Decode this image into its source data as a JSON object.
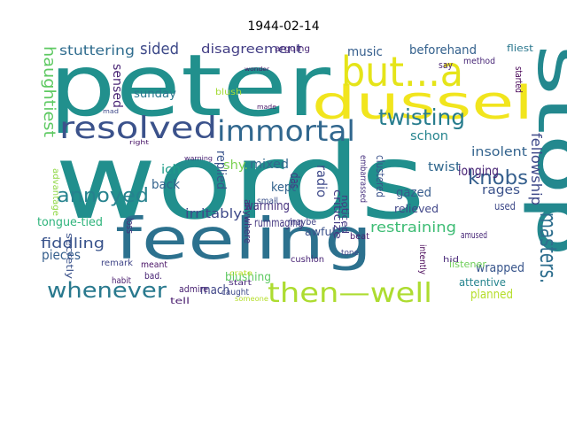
{
  "title": "1944-02-14",
  "words": [
    {
      "text": "peter",
      "color": "#21908d"
    },
    {
      "text": "words",
      "color": "#218f8d"
    },
    {
      "text": "feeling",
      "color": "#2c718e"
    },
    {
      "text": "stop",
      "color": "#23888e"
    },
    {
      "text": "dussel",
      "color": "#f1e51d"
    },
    {
      "text": "but...a",
      "color": "#e5e419"
    },
    {
      "text": "resolved",
      "color": "#3b528b"
    },
    {
      "text": "immortal",
      "color": "#31678e"
    },
    {
      "text": "twisting",
      "color": "#287d8e"
    },
    {
      "text": "annoyed",
      "color": "#26828e"
    },
    {
      "text": "whenever",
      "color": "#29798e"
    },
    {
      "text": "then—well",
      "color": "#addc30"
    },
    {
      "text": "masters.",
      "color": "#2e6e8e"
    },
    {
      "text": "knobs",
      "color": "#355f8d"
    },
    {
      "text": "fellowship",
      "color": "#3e4989"
    },
    {
      "text": "haughtiest",
      "color": "#5ec962"
    },
    {
      "text": "stuttering",
      "color": "#2f6c8e"
    },
    {
      "text": "sided",
      "color": "#3e4a89"
    },
    {
      "text": "disagreement",
      "color": "#433e85"
    },
    {
      "text": "music",
      "color": "#355e8d"
    },
    {
      "text": "beforehand",
      "color": "#34618d"
    },
    {
      "text": "sensed",
      "color": "#482374"
    },
    {
      "text": "sunday",
      "color": "#2a778e"
    },
    {
      "text": "shy.",
      "color": "#7ad151"
    },
    {
      "text": "mixed",
      "color": "#31688e"
    },
    {
      "text": "schon",
      "color": "#25848e"
    },
    {
      "text": "insolent",
      "color": "#33638d"
    },
    {
      "text": "ich",
      "color": "#1f9e89"
    },
    {
      "text": "back",
      "color": "#33638d"
    },
    {
      "text": "replied",
      "color": "#3a548c"
    },
    {
      "text": "das",
      "color": "#443983"
    },
    {
      "text": "radio",
      "color": "#3e4989"
    },
    {
      "text": "twist",
      "color": "#31688e"
    },
    {
      "text": "longing",
      "color": "#482475"
    },
    {
      "text": "rages",
      "color": "#3b528b"
    },
    {
      "text": "gazed",
      "color": "#365c8d"
    },
    {
      "text": "kept",
      "color": "#33638d"
    },
    {
      "text": "warming",
      "color": "#46327e"
    },
    {
      "text": "irritably",
      "color": "#3e4989"
    },
    {
      "text": "restraining",
      "color": "#3dbc74"
    },
    {
      "text": "tongue-tied",
      "color": "#2fb47c"
    },
    {
      "text": "fiddling",
      "color": "#3a548c"
    },
    {
      "text": "rummaging",
      "color": "#453781"
    },
    {
      "text": "maybe",
      "color": "#414487"
    },
    {
      "text": "awful",
      "color": "#3b528b"
    },
    {
      "text": "pieces",
      "color": "#355f8d"
    },
    {
      "text": "wrapped",
      "color": "#39568c"
    },
    {
      "text": "attentive",
      "color": "#25848e"
    },
    {
      "text": "planned",
      "color": "#b5de2b"
    },
    {
      "text": "mach",
      "color": "#404688"
    },
    {
      "text": "blushing",
      "color": "#5ec962"
    },
    {
      "text": "criticize",
      "color": "#443983"
    },
    {
      "text": "clustered",
      "color": "#3b528b"
    },
    {
      "text": "relieved",
      "color": "#404688"
    },
    {
      "text": "used",
      "color": "#3e4989"
    },
    {
      "text": "amused",
      "color": "#482878"
    },
    {
      "text": "listener",
      "color": "#6ece58"
    },
    {
      "text": "secretly",
      "color": "#3b528b"
    },
    {
      "text": "advantage",
      "color": "#8fd744"
    },
    {
      "text": "loss",
      "color": "#46327e"
    },
    {
      "text": "arguing",
      "color": "#482576"
    },
    {
      "text": "method",
      "color": "#482777"
    },
    {
      "text": "fliest",
      "color": "#2a778e"
    },
    {
      "text": "say",
      "color": "#482475"
    },
    {
      "text": "started",
      "color": "#440154"
    },
    {
      "text": "blush",
      "color": "#a5db36"
    },
    {
      "text": "embarrassed",
      "color": "#46307e"
    },
    {
      "text": "noticed",
      "color": "#443a83"
    },
    {
      "text": "anywhere",
      "color": "#472d7b"
    },
    {
      "text": "small",
      "color": "#3b528b"
    },
    {
      "text": "intently",
      "color": "#440154"
    },
    {
      "text": "beat",
      "color": "#481d6f"
    },
    {
      "text": "remark",
      "color": "#404688"
    },
    {
      "text": "bad.",
      "color": "#482475"
    },
    {
      "text": "admire",
      "color": "#482071"
    },
    {
      "text": "tell",
      "color": "#481b6d"
    },
    {
      "text": "caught",
      "color": "#3e4989"
    },
    {
      "text": "meant",
      "color": "#471164"
    },
    {
      "text": "habit",
      "color": "#481b6d"
    },
    {
      "text": "cushion",
      "color": "#482475"
    },
    {
      "text": "tone",
      "color": "#404688"
    },
    {
      "text": "start",
      "color": "#482878"
    },
    {
      "text": "crate",
      "color": "#bddf26"
    },
    {
      "text": "someone",
      "color": "#b5de2b"
    },
    {
      "text": "hid",
      "color": "#482878"
    },
    {
      "text": "made",
      "color": "#481467"
    },
    {
      "text": "wonder",
      "color": "#471164"
    },
    {
      "text": "mad",
      "color": "#3e4989"
    },
    {
      "text": "right",
      "color": "#481467"
    },
    {
      "text": "warning",
      "color": "#482173"
    }
  ]
}
